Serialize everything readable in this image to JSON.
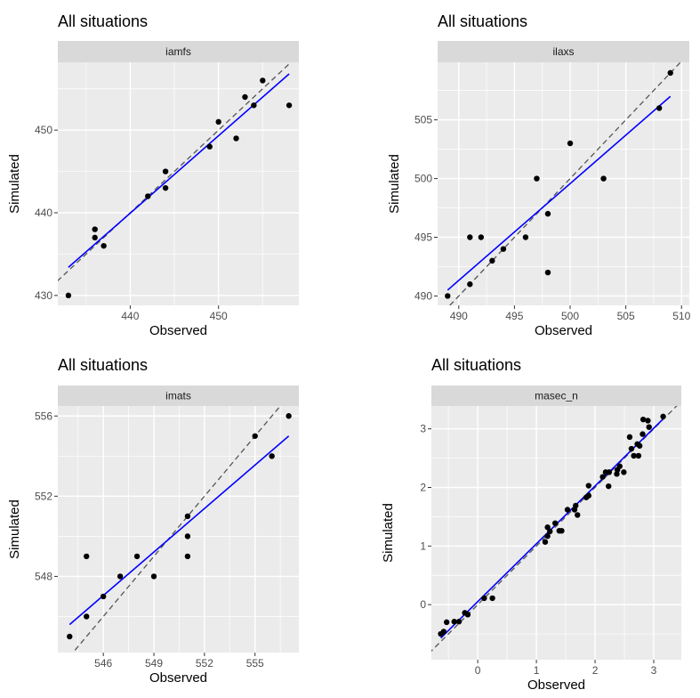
{
  "chart_data": [
    {
      "type": "scatter",
      "title": "All situations",
      "facet": "iamfs",
      "xlabel": "Observed",
      "ylabel": "Simulated",
      "xlim": [
        431.8,
        459.1
      ],
      "ylim": [
        428.8,
        458.2
      ],
      "xticks": [
        440,
        450
      ],
      "yticks": [
        430,
        440,
        450
      ],
      "points": [
        [
          433,
          430
        ],
        [
          436,
          438
        ],
        [
          436,
          437
        ],
        [
          437,
          436
        ],
        [
          442,
          442
        ],
        [
          444,
          445
        ],
        [
          444,
          443
        ],
        [
          449,
          448
        ],
        [
          450,
          451
        ],
        [
          452,
          449
        ],
        [
          453,
          454
        ],
        [
          454,
          453
        ],
        [
          455,
          456
        ],
        [
          458,
          453
        ]
      ],
      "fit_line": [
        [
          433,
          433.4
        ],
        [
          458,
          456.8
        ]
      ],
      "identity_line": true
    },
    {
      "type": "scatter",
      "title": "All situations",
      "facet": "ilaxs",
      "xlabel": "Observed",
      "ylabel": "Simulated",
      "xlim": [
        488.1,
        510.7
      ],
      "ylim": [
        489.2,
        509.9
      ],
      "xticks": [
        490,
        495,
        500,
        505,
        510
      ],
      "yticks": [
        490,
        495,
        500,
        505
      ],
      "points": [
        [
          489,
          490
        ],
        [
          491,
          491
        ],
        [
          491,
          495
        ],
        [
          492,
          495
        ],
        [
          493,
          493
        ],
        [
          494,
          494
        ],
        [
          496,
          495
        ],
        [
          497,
          500
        ],
        [
          498,
          497
        ],
        [
          498,
          492
        ],
        [
          500,
          503
        ],
        [
          503,
          500
        ],
        [
          508,
          506
        ],
        [
          509,
          509
        ]
      ],
      "fit_line": [
        [
          489,
          490.5
        ],
        [
          509,
          507
        ]
      ],
      "identity_line": true
    },
    {
      "type": "scatter",
      "title": "All situations",
      "facet": "imats",
      "xlabel": "Observed",
      "ylabel": "Simulated",
      "xlim": [
        543.3,
        557.6
      ],
      "ylim": [
        544.2,
        556.5
      ],
      "xticks": [
        546,
        549,
        552,
        555
      ],
      "yticks": [
        548,
        552,
        556
      ],
      "points": [
        [
          544,
          545
        ],
        [
          545,
          546
        ],
        [
          545,
          549
        ],
        [
          546,
          547
        ],
        [
          547,
          548
        ],
        [
          548,
          549
        ],
        [
          549,
          548
        ],
        [
          551,
          551
        ],
        [
          551,
          550
        ],
        [
          551,
          549
        ],
        [
          555,
          555
        ],
        [
          556,
          554
        ],
        [
          557,
          556
        ]
      ],
      "fit_line": [
        [
          544,
          545.6
        ],
        [
          557,
          555
        ]
      ],
      "identity_line": true
    },
    {
      "type": "scatter",
      "title": "All situations",
      "facet": "masec_n",
      "xlabel": "Observed",
      "ylabel": "Simulated",
      "xlim": [
        -0.79,
        3.47
      ],
      "ylim": [
        -0.94,
        3.39
      ],
      "xticks": [
        0,
        1,
        2,
        3
      ],
      "yticks": [
        0,
        1,
        2,
        3
      ],
      "points": [
        [
          -0.63,
          -0.5
        ],
        [
          -0.58,
          -0.46
        ],
        [
          -0.53,
          -0.3
        ],
        [
          -0.4,
          -0.29
        ],
        [
          -0.32,
          -0.29
        ],
        [
          -0.22,
          -0.14
        ],
        [
          -0.17,
          -0.17
        ],
        [
          0.11,
          0.11
        ],
        [
          0.25,
          0.11
        ],
        [
          1.15,
          1.07
        ],
        [
          1.19,
          1.17
        ],
        [
          1.19,
          1.32
        ],
        [
          1.23,
          1.25
        ],
        [
          1.32,
          1.39
        ],
        [
          1.39,
          1.26
        ],
        [
          1.43,
          1.26
        ],
        [
          1.53,
          1.62
        ],
        [
          1.65,
          1.62
        ],
        [
          1.67,
          1.69
        ],
        [
          1.7,
          1.53
        ],
        [
          1.85,
          1.83
        ],
        [
          1.89,
          1.86
        ],
        [
          1.89,
          2.03
        ],
        [
          2.13,
          2.18
        ],
        [
          2.18,
          2.26
        ],
        [
          2.24,
          2.26
        ],
        [
          2.23,
          2.02
        ],
        [
          2.37,
          2.23
        ],
        [
          2.38,
          2.3
        ],
        [
          2.42,
          2.36
        ],
        [
          2.49,
          2.26
        ],
        [
          2.59,
          2.86
        ],
        [
          2.62,
          2.66
        ],
        [
          2.66,
          2.54
        ],
        [
          2.74,
          2.54
        ],
        [
          2.72,
          2.74
        ],
        [
          2.76,
          2.71
        ],
        [
          2.81,
          2.91
        ],
        [
          2.82,
          3.16
        ],
        [
          2.9,
          3.14
        ],
        [
          2.92,
          3.03
        ],
        [
          3.16,
          3.21
        ]
      ],
      "fit_line": [
        [
          -0.63,
          -0.57
        ],
        [
          3.15,
          3.16
        ]
      ],
      "identity_line": true
    }
  ],
  "colors": {
    "panel_bg": "#ebebeb",
    "strip_bg": "#d9d9d9",
    "fit": "#0000ff",
    "identity": "#555555",
    "point": "#000000"
  }
}
